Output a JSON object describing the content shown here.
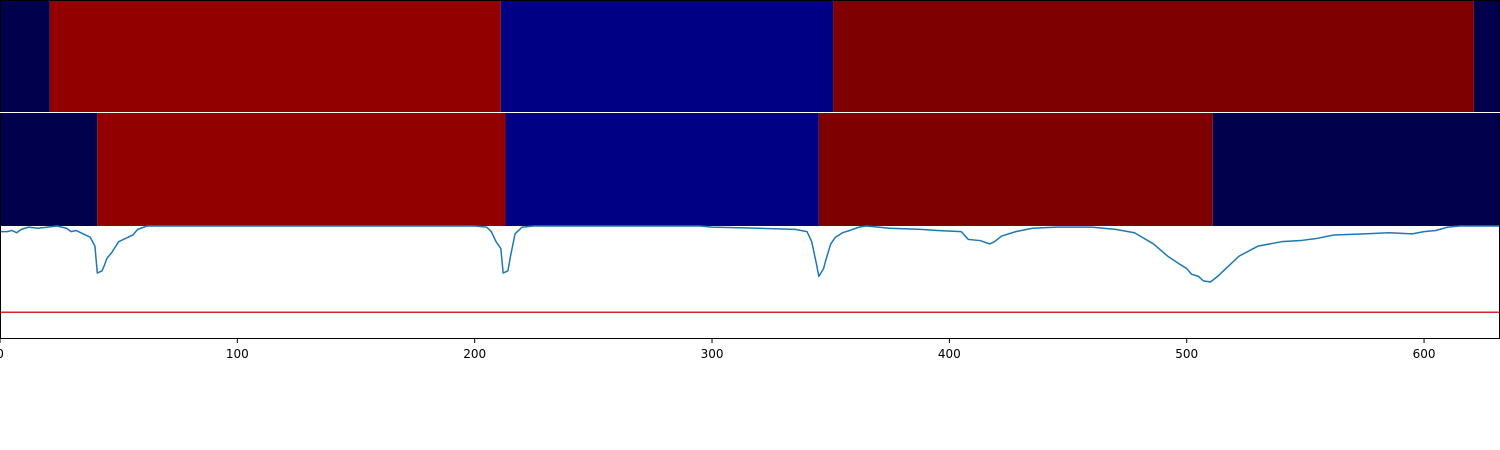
{
  "chart_data": {
    "type": "heatmap",
    "title": "",
    "xlabel": "",
    "ylabel": "",
    "xlim": [
      0,
      632
    ],
    "grid": false,
    "legend": "none",
    "xticks": [
      0,
      100,
      200,
      300,
      400,
      500,
      600
    ],
    "xtick_labels": [
      "0",
      "100",
      "200",
      "300",
      "400",
      "500",
      "600"
    ],
    "segment_rows": [
      {
        "segments": [
          {
            "start": 0,
            "end": 21,
            "color": "#00004c"
          },
          {
            "start": 21,
            "end": 211,
            "color": "#920000"
          },
          {
            "start": 211,
            "end": 351,
            "color": "#000084"
          },
          {
            "start": 351,
            "end": 621,
            "color": "#7f0000"
          },
          {
            "start": 621,
            "end": 632,
            "color": "#00004c"
          }
        ]
      },
      {
        "segments": [
          {
            "start": 0,
            "end": 41,
            "color": "#00004c"
          },
          {
            "start": 41,
            "end": 213,
            "color": "#920000"
          },
          {
            "start": 213,
            "end": 345,
            "color": "#000084"
          },
          {
            "start": 345,
            "end": 511,
            "color": "#7f0000"
          },
          {
            "start": 511,
            "end": 632,
            "color": "#00004c"
          }
        ]
      }
    ],
    "line_series": {
      "color": "#1f77b4",
      "ylim": [
        0,
        1
      ],
      "points": [
        [
          0,
          0.95
        ],
        [
          3,
          0.95
        ],
        [
          5,
          0.96
        ],
        [
          7,
          0.94
        ],
        [
          9,
          0.97
        ],
        [
          12,
          0.99
        ],
        [
          16,
          0.98
        ],
        [
          20,
          0.99
        ],
        [
          24,
          1.0
        ],
        [
          28,
          0.98
        ],
        [
          30,
          0.95
        ],
        [
          32,
          0.96
        ],
        [
          35,
          0.93
        ],
        [
          38,
          0.9
        ],
        [
          40,
          0.82
        ],
        [
          41,
          0.58
        ],
        [
          43,
          0.6
        ],
        [
          44,
          0.65
        ],
        [
          45,
          0.71
        ],
        [
          47,
          0.76
        ],
        [
          50,
          0.86
        ],
        [
          53,
          0.89
        ],
        [
          56,
          0.92
        ],
        [
          58,
          0.97
        ],
        [
          62,
          1.0
        ],
        [
          80,
          1.0
        ],
        [
          120,
          1.0
        ],
        [
          160,
          1.0
        ],
        [
          200,
          1.0
        ],
        [
          205,
          0.99
        ],
        [
          207,
          0.95
        ],
        [
          209,
          0.86
        ],
        [
          211,
          0.8
        ],
        [
          212,
          0.58
        ],
        [
          214,
          0.6
        ],
        [
          215,
          0.72
        ],
        [
          217,
          0.93
        ],
        [
          220,
          0.99
        ],
        [
          225,
          1.0
        ],
        [
          260,
          1.0
        ],
        [
          295,
          1.0
        ],
        [
          300,
          0.99
        ],
        [
          320,
          0.98
        ],
        [
          335,
          0.97
        ],
        [
          340,
          0.95
        ],
        [
          342,
          0.86
        ],
        [
          344,
          0.66
        ],
        [
          345,
          0.55
        ],
        [
          347,
          0.62
        ],
        [
          348,
          0.7
        ],
        [
          350,
          0.84
        ],
        [
          352,
          0.9
        ],
        [
          355,
          0.94
        ],
        [
          358,
          0.96
        ],
        [
          362,
          0.99
        ],
        [
          365,
          1.0
        ],
        [
          375,
          0.98
        ],
        [
          388,
          0.97
        ],
        [
          395,
          0.96
        ],
        [
          405,
          0.95
        ],
        [
          408,
          0.88
        ],
        [
          413,
          0.87
        ],
        [
          417,
          0.84
        ],
        [
          419,
          0.86
        ],
        [
          422,
          0.91
        ],
        [
          428,
          0.95
        ],
        [
          435,
          0.98
        ],
        [
          445,
          0.99
        ],
        [
          460,
          0.99
        ],
        [
          470,
          0.97
        ],
        [
          478,
          0.94
        ],
        [
          486,
          0.84
        ],
        [
          492,
          0.73
        ],
        [
          497,
          0.66
        ],
        [
          500,
          0.62
        ],
        [
          502,
          0.57
        ],
        [
          505,
          0.55
        ],
        [
          507,
          0.51
        ],
        [
          510,
          0.5
        ],
        [
          513,
          0.55
        ],
        [
          517,
          0.63
        ],
        [
          522,
          0.73
        ],
        [
          530,
          0.82
        ],
        [
          540,
          0.86
        ],
        [
          548,
          0.87
        ],
        [
          555,
          0.89
        ],
        [
          562,
          0.92
        ],
        [
          575,
          0.93
        ],
        [
          585,
          0.94
        ],
        [
          595,
          0.93
        ],
        [
          600,
          0.95
        ],
        [
          605,
          0.96
        ],
        [
          610,
          0.99
        ],
        [
          615,
          1.0
        ],
        [
          632,
          1.0
        ]
      ]
    },
    "threshold_line": {
      "y": 0.23,
      "color": "#d62728"
    }
  }
}
